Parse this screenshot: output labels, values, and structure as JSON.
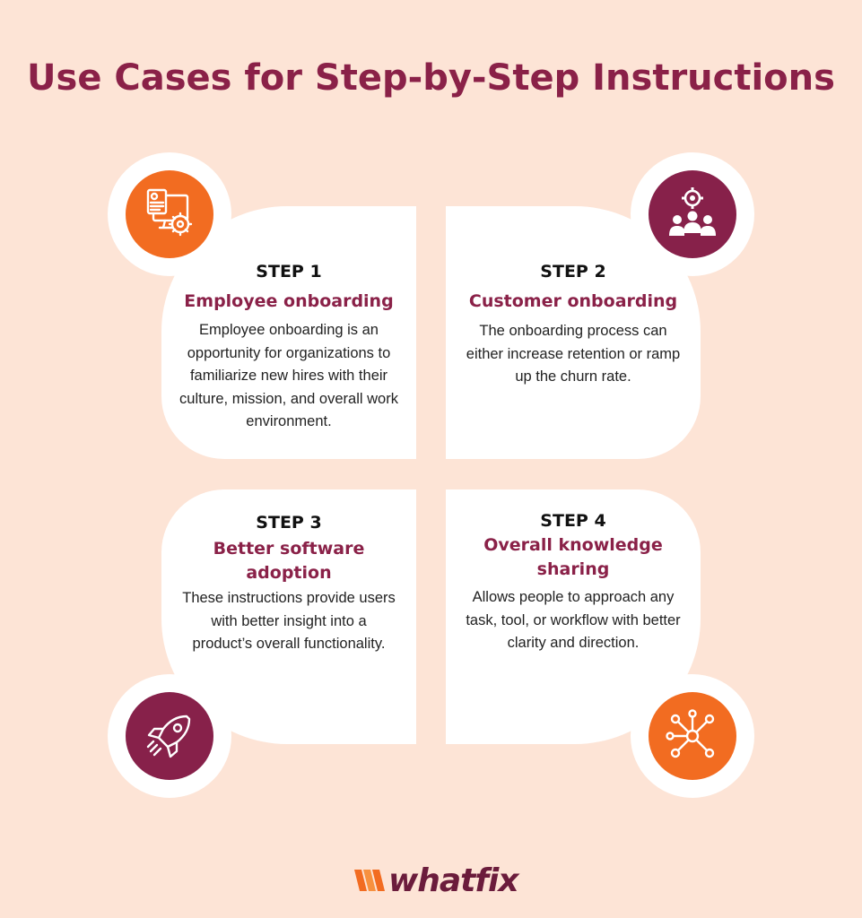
{
  "title": "Use Cases for Step-by-Step Instructions",
  "steps": [
    {
      "step": "STEP 1",
      "heading": "Employee onboarding",
      "body": "Employee onboarding is an opportunity for organizations to familiarize new hires with their culture, mission, and overall work environment.",
      "icon": "employee-profile-computer-icon",
      "icon_color": "#f26c21"
    },
    {
      "step": "STEP 2",
      "heading": "Customer onboarding",
      "body": "The onboarding process can either increase retention or ramp up the churn rate.",
      "icon": "team-gear-icon",
      "icon_color": "#87214a"
    },
    {
      "step": "STEP 3",
      "heading": "Better software adoption",
      "body": "These instructions provide users with better insight into a product’s overall functionality.",
      "icon": "rocket-icon",
      "icon_color": "#87214a"
    },
    {
      "step": "STEP 4",
      "heading": "Overall knowledge sharing",
      "body": "Allows people to approach any task, tool, or workflow with better clarity and direction.",
      "icon": "network-nodes-icon",
      "icon_color": "#f26c21"
    }
  ],
  "logo": {
    "text": "whatfix",
    "mark_color": "#f26c21",
    "text_color": "#6b1c3c"
  },
  "colors": {
    "background": "#fde4d6",
    "accent": "#8a2148",
    "orange": "#f26c21",
    "card": "#ffffff"
  }
}
